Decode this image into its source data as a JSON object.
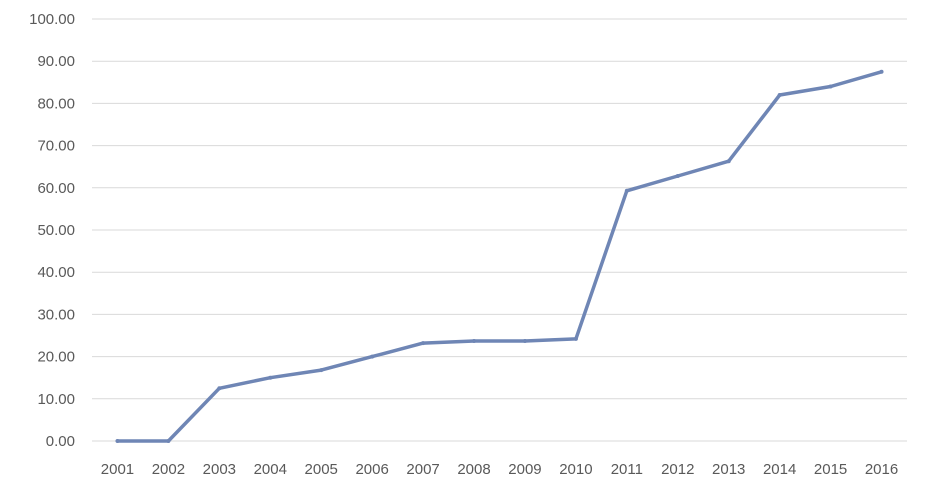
{
  "chart_data": {
    "type": "line",
    "title": "",
    "xlabel": "",
    "ylabel": "",
    "categories": [
      "2001",
      "2002",
      "2003",
      "2004",
      "2005",
      "2006",
      "2007",
      "2008",
      "2009",
      "2010",
      "2011",
      "2012",
      "2013",
      "2014",
      "2015",
      "2016"
    ],
    "series": [
      {
        "values": [
          0.0,
          0.0,
          12.5,
          15.0,
          16.8,
          20.0,
          23.2,
          23.7,
          23.7,
          24.2,
          59.3,
          62.8,
          66.3,
          82.0,
          84.0,
          87.5
        ]
      }
    ],
    "ylim": [
      0,
      100
    ],
    "y_ticks": [
      "0.00",
      "10.00",
      "20.00",
      "30.00",
      "40.00",
      "50.00",
      "60.00",
      "70.00",
      "80.00",
      "90.00",
      "100.00"
    ],
    "grid": "horizontal",
    "legend": "none",
    "colors": {
      "line": "#6f86b5",
      "grid": "#d9d9d9",
      "text": "#595959"
    }
  }
}
